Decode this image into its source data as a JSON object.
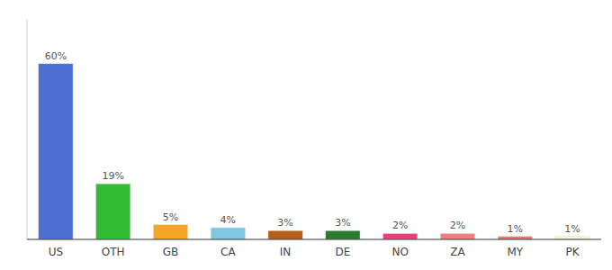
{
  "chart_data": {
    "type": "bar",
    "categories": [
      "US",
      "OTH",
      "GB",
      "CA",
      "IN",
      "DE",
      "NO",
      "ZA",
      "MY",
      "PK"
    ],
    "values": [
      60,
      19,
      5,
      4,
      3,
      3,
      2,
      2,
      1,
      1
    ],
    "value_labels": [
      "60%",
      "19%",
      "5%",
      "4%",
      "3%",
      "3%",
      "2%",
      "2%",
      "1%",
      "1%"
    ],
    "colors": [
      "#4d6fd4",
      "#33bb33",
      "#f5a623",
      "#7ec8e3",
      "#b85c1a",
      "#2d7a2d",
      "#e8417a",
      "#f08080",
      "#e87878",
      "#f5f5d8"
    ],
    "ylim": [
      0,
      75
    ],
    "data_labels": true,
    "grid": false,
    "tick_labels": "x"
  }
}
